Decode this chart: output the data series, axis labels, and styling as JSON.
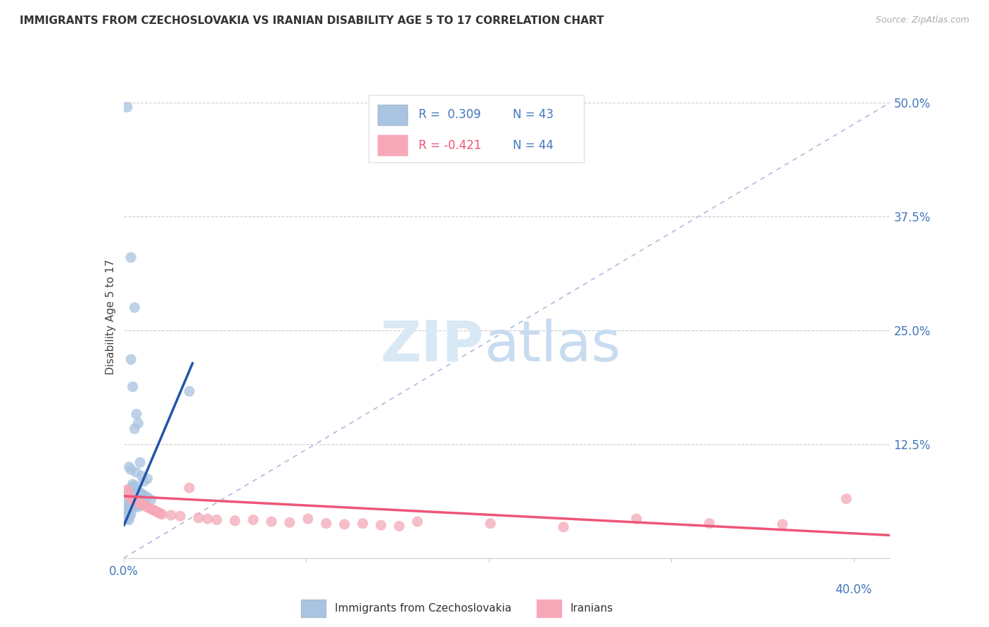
{
  "title": "IMMIGRANTS FROM CZECHOSLOVAKIA VS IRANIAN DISABILITY AGE 5 TO 17 CORRELATION CHART",
  "source": "Source: ZipAtlas.com",
  "ylabel": "Disability Age 5 to 17",
  "legend1_label": "Immigrants from Czechoslovakia",
  "legend2_label": "Iranians",
  "R1": 0.309,
  "N1": 43,
  "R2": -0.421,
  "N2": 44,
  "blue_color": "#A8C4E0",
  "pink_color": "#F4A8B8",
  "blue_line_color": "#2255AA",
  "pink_line_color": "#EE5577",
  "diagonal_color": "#AABBDD",
  "blue_dots": [
    [
      0.002,
      0.495
    ],
    [
      0.004,
      0.33
    ],
    [
      0.006,
      0.275
    ],
    [
      0.004,
      0.218
    ],
    [
      0.005,
      0.188
    ],
    [
      0.007,
      0.158
    ],
    [
      0.008,
      0.148
    ],
    [
      0.006,
      0.142
    ],
    [
      0.009,
      0.105
    ],
    [
      0.003,
      0.1
    ],
    [
      0.004,
      0.097
    ],
    [
      0.007,
      0.094
    ],
    [
      0.01,
      0.09
    ],
    [
      0.013,
      0.087
    ],
    [
      0.011,
      0.084
    ],
    [
      0.005,
      0.081
    ],
    [
      0.006,
      0.079
    ],
    [
      0.004,
      0.077
    ],
    [
      0.007,
      0.075
    ],
    [
      0.008,
      0.073
    ],
    [
      0.009,
      0.072
    ],
    [
      0.01,
      0.07
    ],
    [
      0.011,
      0.069
    ],
    [
      0.013,
      0.067
    ],
    [
      0.015,
      0.064
    ],
    [
      0.002,
      0.062
    ],
    [
      0.003,
      0.061
    ],
    [
      0.004,
      0.06
    ],
    [
      0.005,
      0.059
    ],
    [
      0.006,
      0.058
    ],
    [
      0.007,
      0.057
    ],
    [
      0.008,
      0.056
    ],
    [
      0.002,
      0.054
    ],
    [
      0.003,
      0.053
    ],
    [
      0.004,
      0.052
    ],
    [
      0.002,
      0.05
    ],
    [
      0.003,
      0.049
    ],
    [
      0.004,
      0.048
    ],
    [
      0.003,
      0.046
    ],
    [
      0.002,
      0.045
    ],
    [
      0.002,
      0.043
    ],
    [
      0.003,
      0.042
    ],
    [
      0.036,
      0.183
    ]
  ],
  "pink_dots": [
    [
      0.002,
      0.073
    ],
    [
      0.003,
      0.069
    ],
    [
      0.004,
      0.066
    ],
    [
      0.005,
      0.064
    ],
    [
      0.006,
      0.063
    ],
    [
      0.007,
      0.062
    ],
    [
      0.008,
      0.061
    ],
    [
      0.009,
      0.06
    ],
    [
      0.01,
      0.059
    ],
    [
      0.011,
      0.058
    ],
    [
      0.012,
      0.057
    ],
    [
      0.013,
      0.056
    ],
    [
      0.014,
      0.055
    ],
    [
      0.015,
      0.054
    ],
    [
      0.016,
      0.053
    ],
    [
      0.017,
      0.052
    ],
    [
      0.018,
      0.051
    ],
    [
      0.019,
      0.05
    ],
    [
      0.02,
      0.049
    ],
    [
      0.021,
      0.048
    ],
    [
      0.026,
      0.047
    ],
    [
      0.031,
      0.046
    ],
    [
      0.036,
      0.077
    ],
    [
      0.041,
      0.044
    ],
    [
      0.046,
      0.043
    ],
    [
      0.051,
      0.042
    ],
    [
      0.061,
      0.041
    ],
    [
      0.071,
      0.042
    ],
    [
      0.081,
      0.04
    ],
    [
      0.091,
      0.039
    ],
    [
      0.101,
      0.043
    ],
    [
      0.111,
      0.038
    ],
    [
      0.121,
      0.037
    ],
    [
      0.131,
      0.038
    ],
    [
      0.141,
      0.036
    ],
    [
      0.151,
      0.035
    ],
    [
      0.161,
      0.04
    ],
    [
      0.201,
      0.038
    ],
    [
      0.241,
      0.034
    ],
    [
      0.281,
      0.043
    ],
    [
      0.321,
      0.038
    ],
    [
      0.361,
      0.037
    ],
    [
      0.396,
      0.065
    ],
    [
      0.002,
      0.075
    ]
  ],
  "xlim": [
    0.0,
    0.42
  ],
  "ylim": [
    0.0,
    0.53
  ],
  "blue_trend_x": [
    0.0,
    0.038
  ],
  "blue_trend_y": [
    0.035,
    0.215
  ],
  "pink_trend_x": [
    0.0,
    0.42
  ],
  "pink_trend_y": [
    0.068,
    0.025
  ],
  "xtick_positions": [
    0.0,
    0.1,
    0.2,
    0.3,
    0.4
  ],
  "ytick_positions": [
    0.0,
    0.125,
    0.25,
    0.375,
    0.5
  ],
  "ytick_labels_right": [
    "",
    "12.5%",
    "25.0%",
    "37.5%",
    "50.0%"
  ]
}
